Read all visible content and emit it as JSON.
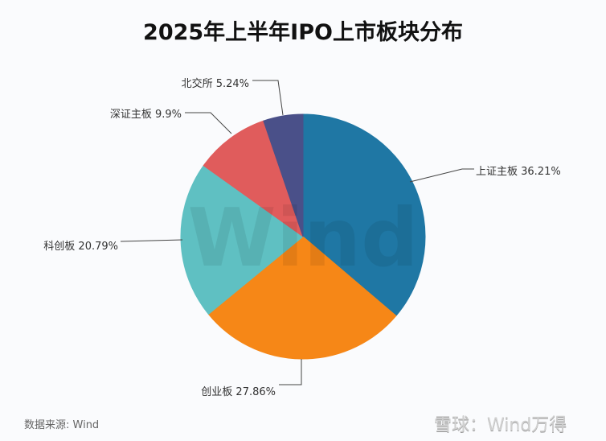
{
  "chart_data": {
    "type": "pie",
    "title": "2025年上半年IPO上市板块分布",
    "start_angle": "top",
    "direction": "clockwise",
    "slices": [
      {
        "label": "上证主板",
        "value": 36.21,
        "display": "上证主板 36.21%",
        "color": "#1f77a4"
      },
      {
        "label": "创业板",
        "value": 27.86,
        "display": "创业板 27.86%",
        "color": "#f68717"
      },
      {
        "label": "科创板",
        "value": 20.79,
        "display": "科创板 20.79%",
        "color": "#5fc0c2"
      },
      {
        "label": "深证主板",
        "value": 9.9,
        "display": "深证主板 9.9%",
        "color": "#e05c5c"
      },
      {
        "label": "北交所",
        "value": 5.24,
        "display": "北交所 5.24%",
        "color": "#4a5089"
      }
    ]
  },
  "watermark": "Wind",
  "source": "数据来源: Wind",
  "brand": "雪球：Wind万得"
}
